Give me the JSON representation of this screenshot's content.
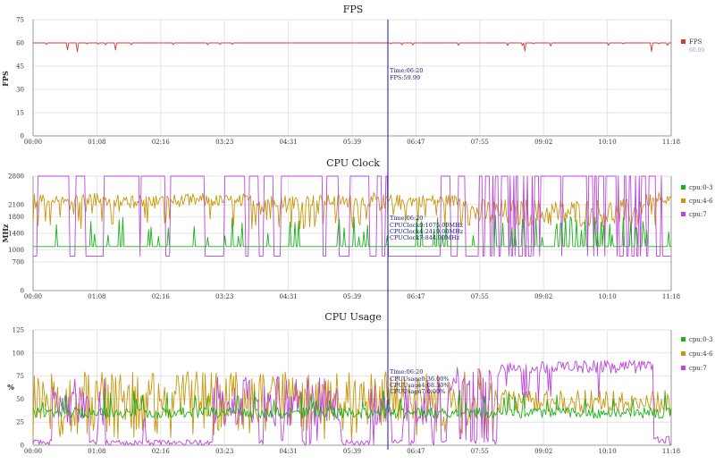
{
  "cursor_time": "06:20",
  "time_ticks": [
    "00:00",
    "01:08",
    "02:16",
    "03:23",
    "04:31",
    "05:39",
    "06:47",
    "07:55",
    "09:02",
    "10:10",
    "11:18"
  ],
  "colors": {
    "fps": "#d23a3a",
    "cpu0_3": "#19b219",
    "cpu4_6": "#c8960a",
    "cpu7": "#bb44dd",
    "cursor": "#1a1a9a",
    "grid": "#e3e3e3",
    "axis": "#999999"
  },
  "chart_data": [
    {
      "type": "line",
      "title": "FPS",
      "ylabel": "FPS",
      "ylim": [
        0,
        75
      ],
      "yticks": [
        "0",
        "15",
        "30",
        "45",
        "60",
        "75"
      ],
      "xlabel": "",
      "x_range": [
        "00:00",
        "11:18"
      ],
      "grid": true,
      "legend_position": "right",
      "series": [
        {
          "name": "FPS",
          "value_label": "60.00",
          "baseline": 60,
          "typical_dip": 58,
          "deepest_dips": 54
        }
      ],
      "tooltip": {
        "time_label": "Time:06:20",
        "lines": [
          "FPS:59.99"
        ]
      }
    },
    {
      "type": "line",
      "title": "CPU Clock",
      "ylabel": "MHz",
      "ylim": [
        0,
        2800
      ],
      "yticks": [
        "0",
        "700",
        "1000",
        "1400",
        "1800",
        "2100",
        "2800"
      ],
      "xlabel": "",
      "x_range": [
        "00:00",
        "11:18"
      ],
      "grid": true,
      "legend_position": "right",
      "series": [
        {
          "name": "cpu:0-3",
          "baseline": 1075,
          "spike_to": 1800
        },
        {
          "name": "cpu:4-6",
          "band": [
            1500,
            2400
          ],
          "typical": 2200
        },
        {
          "name": "cpu:7",
          "levels": [
            844,
            2800
          ]
        }
      ],
      "tooltip": {
        "time_label": "Time:06:20",
        "lines": [
          "CPUClock0:1075.00MHz",
          "CPUClock4:2419.00MHz",
          "CPUClock7:844.00MHz"
        ]
      }
    },
    {
      "type": "line",
      "title": "CPU Usage",
      "ylabel": "%",
      "ylim": [
        0,
        125
      ],
      "yticks": [
        "0",
        "25",
        "50",
        "75",
        "100",
        "125"
      ],
      "xlabel": "",
      "x_range": [
        "00:00",
        "11:18"
      ],
      "grid": true,
      "legend_position": "right",
      "series": [
        {
          "name": "cpu:0-3",
          "typical": 35,
          "range": [
            20,
            60
          ]
        },
        {
          "name": "cpu:4-6",
          "typical": 45,
          "range": [
            5,
            80
          ]
        },
        {
          "name": "cpu:7",
          "typical_early": 5,
          "typical_late": 85,
          "range": [
            0,
            95
          ]
        }
      ],
      "tooltip": {
        "time_label": "Time:06:20",
        "lines": [
          "CPUUsage0:36.00%",
          "CPUUsage4:68.30%",
          "CPUUsage7:0.00%"
        ]
      }
    }
  ]
}
